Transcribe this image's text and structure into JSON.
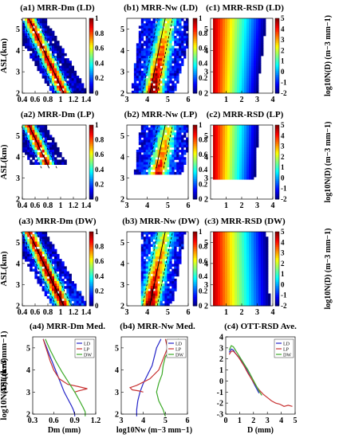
{
  "figure": {
    "panels": [
      {
        "id": "a1",
        "title": "(a1) MRR-Dm (LD)",
        "ylabel": "ASL(km)"
      },
      {
        "id": "b1",
        "title": "(b1) MRR-Nw (LD)"
      },
      {
        "id": "c1",
        "title": "(c1) MRR-RSD (LD)"
      },
      {
        "id": "a2",
        "title": "(a2) MRR-Dm (LP)",
        "ylabel": "ASL(km)"
      },
      {
        "id": "b2",
        "title": "(b2) MRR-Nw (LP)"
      },
      {
        "id": "c2",
        "title": "(c2) MRR-RSD (LP)"
      },
      {
        "id": "a3",
        "title": "(a3) MRR-Dm (DW)",
        "ylabel": "ASL(km)"
      },
      {
        "id": "b3",
        "title": "(b3) MRR-Nw (DW)"
      },
      {
        "id": "c3",
        "title": "(c3) MRR-RSD (DW)"
      },
      {
        "id": "a4",
        "title": "(a4) MRR-Dm Med.",
        "ylabel": "ASL(km)",
        "xlabel": "Dm (mm)"
      },
      {
        "id": "b4",
        "title": "(b4) MRR-Nw Med.",
        "ylabel": "ASL(km)",
        "xlabel": "log10Nw (m−3 mm−1)"
      },
      {
        "id": "c4",
        "title": "(c4) OTT-RSD Ave.",
        "ylabel": "log10N(D) (m−3 mm−1)",
        "xlabel": "D (mm)"
      }
    ],
    "colorbar_ab": {
      "ticks": [
        "0",
        "0.2",
        "0.4",
        "0.6",
        "0.8",
        "1"
      ]
    },
    "colorbar_c": {
      "ticks": [
        "-2",
        "-1",
        "0",
        "1",
        "2",
        "3",
        "4",
        "5"
      ],
      "label": "log10N(D) (m−3 mm−1)"
    },
    "legend_labels": [
      "LD",
      "LP",
      "DW"
    ],
    "colors": {
      "LD": "#2424c8",
      "LP": "#c83232",
      "DW": "#3caa28"
    }
  },
  "chart_data": [
    {
      "type": "heatmap",
      "panel": "a1",
      "xlim": [
        0.4,
        1.4
      ],
      "ylim": [
        2,
        5.5
      ],
      "xticks": [
        "0.4",
        "0.6",
        "0.8",
        "1",
        "1.2",
        "1.4"
      ],
      "yticks": [
        "2",
        "3",
        "4",
        "5"
      ]
    },
    {
      "type": "heatmap",
      "panel": "b1",
      "xlim": [
        3,
        6
      ],
      "ylim": [
        2,
        5.5
      ],
      "xticks": [
        "3",
        "4",
        "5",
        "6"
      ],
      "yticks": [
        "2",
        "3",
        "4",
        "5"
      ]
    },
    {
      "type": "heatmap",
      "panel": "c1",
      "xlim": [
        0,
        4
      ],
      "ylim": [
        2,
        5.5
      ],
      "xticks": [
        "1",
        "2",
        "3",
        "4"
      ],
      "yticks": [
        "2",
        "3",
        "4",
        "5"
      ]
    },
    {
      "type": "heatmap",
      "panel": "a2",
      "xlim": [
        0.4,
        1.4
      ],
      "ylim": [
        2,
        5.5
      ],
      "xticks": [
        "0.4",
        "0.6",
        "0.8",
        "1",
        "1.2",
        "1.4"
      ],
      "yticks": [
        "2",
        "3",
        "4",
        "5"
      ]
    },
    {
      "type": "heatmap",
      "panel": "b2",
      "xlim": [
        3,
        6
      ],
      "ylim": [
        2,
        5.5
      ],
      "xticks": [
        "3",
        "4",
        "5",
        "6"
      ],
      "yticks": [
        "2",
        "3",
        "4",
        "5"
      ]
    },
    {
      "type": "heatmap",
      "panel": "c2",
      "xlim": [
        0,
        4
      ],
      "ylim": [
        2,
        5.5
      ],
      "xticks": [
        "1",
        "2",
        "3",
        "4"
      ],
      "yticks": [
        "2",
        "3",
        "4",
        "5"
      ]
    },
    {
      "type": "heatmap",
      "panel": "a3",
      "xlim": [
        0.4,
        1.4
      ],
      "ylim": [
        2,
        5.5
      ],
      "xticks": [
        "0.4",
        "0.6",
        "0.8",
        "1",
        "1.2",
        "1.4"
      ],
      "yticks": [
        "2",
        "3",
        "4",
        "5"
      ]
    },
    {
      "type": "heatmap",
      "panel": "b3",
      "xlim": [
        3,
        6
      ],
      "ylim": [
        2,
        5.5
      ],
      "xticks": [
        "3",
        "4",
        "5",
        "6"
      ],
      "yticks": [
        "2",
        "3",
        "4",
        "5"
      ]
    },
    {
      "type": "heatmap",
      "panel": "c3",
      "xlim": [
        0,
        4
      ],
      "ylim": [
        2,
        5.5
      ],
      "xticks": [
        "1",
        "2",
        "3",
        "4"
      ],
      "yticks": [
        "2",
        "3",
        "4",
        "5"
      ]
    },
    {
      "type": "line",
      "panel": "a4",
      "xlim": [
        0.3,
        1.2
      ],
      "ylim": [
        2,
        5.5
      ],
      "xticks": [
        "0.3",
        "0.6",
        "0.9",
        "1.2"
      ],
      "yticks": [
        "2",
        "3",
        "4",
        "5"
      ],
      "series": [
        {
          "name": "LD",
          "x": [
            0.45,
            0.5,
            0.55,
            0.6,
            0.65,
            0.7,
            0.75,
            0.8,
            0.85,
            0.88,
            0.9,
            0.9
          ],
          "y": [
            5.4,
            5.0,
            4.6,
            4.2,
            3.8,
            3.4,
            3.0,
            2.7,
            2.4,
            2.2,
            2.0,
            1.9
          ]
        },
        {
          "name": "LP",
          "x": [
            0.45,
            0.5,
            0.55,
            0.6,
            0.68,
            0.8,
            0.95,
            1.08,
            0.95,
            0.9
          ],
          "y": [
            5.4,
            4.9,
            4.4,
            4.0,
            3.6,
            3.35,
            3.25,
            3.15,
            3.05,
            3.0
          ]
        },
        {
          "name": "DW",
          "x": [
            0.48,
            0.55,
            0.63,
            0.72,
            0.82,
            0.9,
            0.97,
            1.02,
            1.05,
            1.05
          ],
          "y": [
            5.4,
            4.9,
            4.4,
            3.9,
            3.4,
            3.0,
            2.6,
            2.3,
            2.1,
            1.9
          ]
        }
      ]
    },
    {
      "type": "line",
      "panel": "b4",
      "xlim": [
        3,
        6
      ],
      "ylim": [
        2,
        5.5
      ],
      "xticks": [
        "3",
        "4",
        "5",
        "6"
      ],
      "yticks": [
        "2",
        "3",
        "4",
        "5"
      ],
      "series": [
        {
          "name": "LD",
          "x": [
            4.8,
            4.6,
            4.5,
            4.4,
            4.2,
            4.0,
            3.85,
            3.75,
            3.7,
            3.7
          ],
          "y": [
            5.4,
            5.0,
            4.6,
            4.2,
            3.8,
            3.4,
            3.0,
            2.6,
            2.2,
            1.9
          ]
        },
        {
          "name": "LP",
          "x": [
            5.0,
            5.1,
            4.9,
            4.7,
            4.3,
            3.7,
            3.4,
            3.5,
            3.8,
            4.0
          ],
          "y": [
            5.4,
            5.0,
            4.5,
            4.0,
            3.6,
            3.3,
            3.2,
            3.1,
            3.05,
            3.0
          ]
        },
        {
          "name": "DW",
          "x": [
            5.6,
            5.3,
            5.0,
            4.9,
            4.85,
            4.7,
            4.6,
            4.7,
            4.9,
            5.0
          ],
          "y": [
            5.4,
            5.0,
            4.6,
            4.2,
            3.8,
            3.4,
            3.0,
            2.6,
            2.2,
            1.9
          ]
        }
      ]
    },
    {
      "type": "line",
      "panel": "c4",
      "xlim": [
        0,
        5
      ],
      "ylim": [
        -3,
        4
      ],
      "xticks": [
        "0",
        "1",
        "2",
        "3",
        "4",
        "5"
      ],
      "yticks": [
        "-3",
        "-2",
        "-1",
        "0",
        "1",
        "2",
        "3",
        "4"
      ],
      "series": [
        {
          "name": "LD",
          "x": [
            0.25,
            0.4,
            0.55,
            0.7,
            0.9,
            1.1,
            1.35,
            1.6,
            1.85,
            2.1,
            2.4
          ],
          "y": [
            2.6,
            2.9,
            2.8,
            2.5,
            2.2,
            1.9,
            1.4,
            0.8,
            0.2,
            -0.4,
            -1.1
          ]
        },
        {
          "name": "LP",
          "x": [
            0.25,
            0.4,
            0.55,
            0.7,
            0.9,
            1.1,
            1.35,
            1.6,
            1.85,
            2.1,
            2.4,
            2.7,
            3.0,
            3.3,
            3.6,
            3.9,
            4.2,
            4.5,
            4.8
          ],
          "y": [
            2.4,
            2.7,
            2.7,
            2.5,
            2.2,
            1.8,
            1.3,
            0.7,
            0.2,
            -0.3,
            -0.8,
            -1.2,
            -1.5,
            -1.8,
            -2.0,
            -2.1,
            -2.3,
            -2.2,
            -2.3
          ]
        },
        {
          "name": "DW",
          "x": [
            0.25,
            0.4,
            0.55,
            0.7,
            0.9,
            1.1,
            1.35,
            1.6,
            1.85,
            2.1,
            2.4,
            2.6
          ],
          "y": [
            2.8,
            3.2,
            3.1,
            2.8,
            2.4,
            2.0,
            1.5,
            1.0,
            0.4,
            -0.2,
            -0.9,
            -1.3
          ]
        }
      ]
    }
  ]
}
